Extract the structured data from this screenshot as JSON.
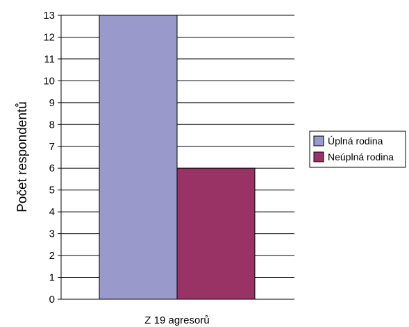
{
  "chart_data": {
    "type": "bar",
    "categories": [
      "Z 19 agresorů"
    ],
    "series": [
      {
        "name": "Úplná rodina",
        "values": [
          13
        ],
        "color": "#9999cc"
      },
      {
        "name": "Neúplná rodina",
        "values": [
          6
        ],
        "color": "#993366"
      }
    ],
    "xlabel": "",
    "ylabel": "Počet respondentů",
    "ylim": [
      0,
      13
    ],
    "yticks": [
      0,
      1,
      2,
      3,
      4,
      5,
      6,
      7,
      8,
      9,
      10,
      11,
      12,
      13
    ],
    "grid": true,
    "legend_position": "right"
  }
}
